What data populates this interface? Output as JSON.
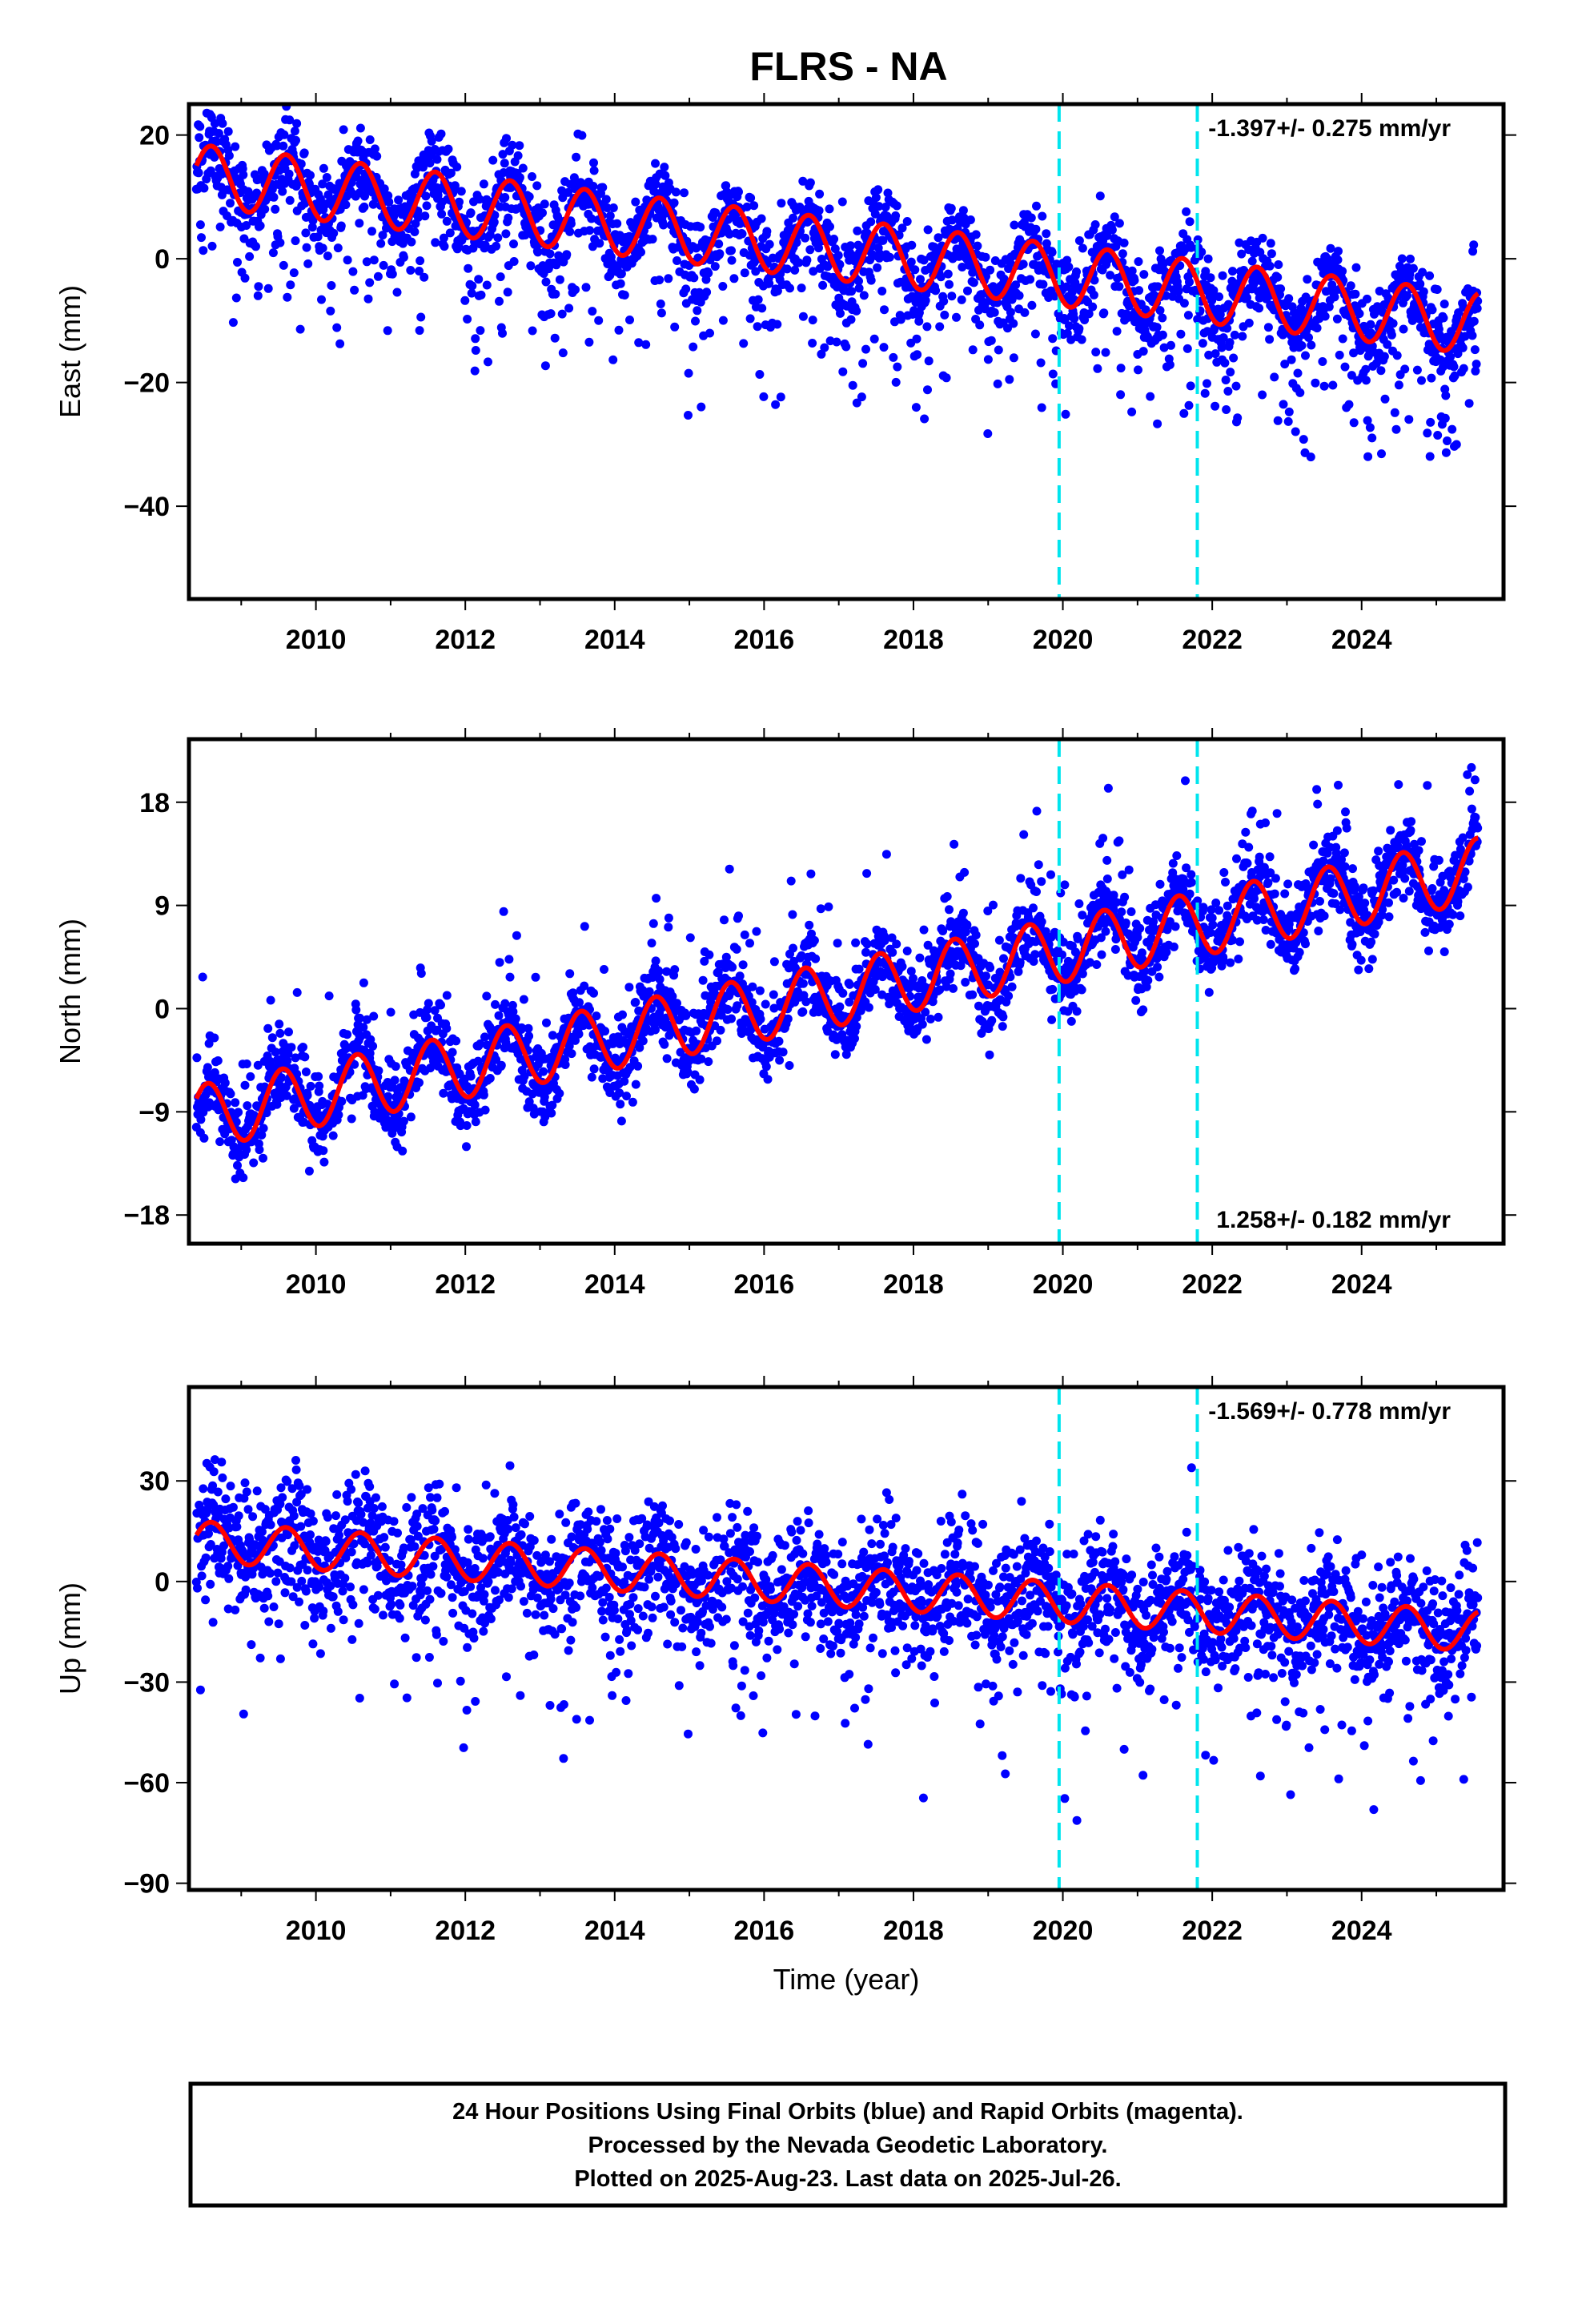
{
  "title": "FLRS - NA",
  "colors": {
    "final_orbits": "#0000ff",
    "model_fit": "#ff0000",
    "offset_lines": "#00e5ee",
    "frame": "#000000"
  },
  "chart_data": [
    {
      "type": "scatter",
      "component": "East",
      "ylabel": "East (mm)",
      "xlabel": "",
      "xlim": [
        2008.3,
        2025.9
      ],
      "ylim": [
        -55,
        25
      ],
      "yticks": [
        20,
        0,
        -20,
        -40
      ],
      "xticks": [
        2010,
        2012,
        2014,
        2016,
        2018,
        2020,
        2022,
        2024
      ],
      "x_tick_labels": [
        "2010",
        "2012",
        "2014",
        "2016",
        "2018",
        "2020",
        "2022",
        "2024"
      ],
      "rate_text": "-1.397+/- 0.275 mm/yr",
      "rate_position": "top-right",
      "offset_lines_x": [
        2019.95,
        2021.8
      ],
      "data_range": [
        2008.4,
        2025.56
      ],
      "fit_model": {
        "intercept_at_start": 13.5,
        "rate_mm_per_yr": -1.397,
        "annual_amplitude": 5.0,
        "annual_peak_phase": 0.6
      },
      "scatter": {
        "noise_sd": 3.5,
        "outlier_fraction": 0.12,
        "outlier_extent": -14
      },
      "series": [
        {
          "values_description": "daily positions",
          "color": "#0000ff"
        },
        {
          "values_description": "model fit",
          "color": "#ff0000"
        }
      ]
    },
    {
      "type": "scatter",
      "component": "North",
      "ylabel": "North (mm)",
      "xlabel": "",
      "xlim": [
        2008.3,
        2025.9
      ],
      "ylim": [
        -20.5,
        23.5
      ],
      "yticks": [
        18,
        9,
        0,
        -9,
        -18
      ],
      "xticks": [
        2010,
        2012,
        2014,
        2016,
        2018,
        2020,
        2022,
        2024
      ],
      "x_tick_labels": [
        "2010",
        "2012",
        "2014",
        "2016",
        "2018",
        "2020",
        "2022",
        "2024"
      ],
      "rate_text": "1.258+/- 0.182 mm/yr",
      "rate_position": "bottom-right",
      "offset_lines_x": [
        2019.95,
        2021.8
      ],
      "data_range": [
        2008.4,
        2025.56
      ],
      "fit_model": {
        "intercept_at_start": -9.5,
        "rate_mm_per_yr": 1.258,
        "annual_amplitude": 2.8,
        "annual_peak_phase": 0.55
      },
      "scatter": {
        "noise_sd": 1.8,
        "outlier_fraction": 0.04,
        "outlier_extent": 6
      },
      "series": [
        {
          "values_description": "daily positions",
          "color": "#0000ff"
        },
        {
          "values_description": "model fit",
          "color": "#ff0000"
        }
      ]
    },
    {
      "type": "scatter",
      "component": "Up",
      "ylabel": "Up (mm)",
      "xlabel": "Time (year)",
      "xlim": [
        2008.3,
        2025.9
      ],
      "ylim": [
        -92,
        58
      ],
      "yticks": [
        30,
        0,
        -30,
        -60,
        -90
      ],
      "xticks": [
        2010,
        2012,
        2014,
        2016,
        2018,
        2020,
        2022,
        2024
      ],
      "x_tick_labels": [
        "2010",
        "2012",
        "2014",
        "2016",
        "2018",
        "2020",
        "2022",
        "2024"
      ],
      "rate_text": "-1.569+/- 0.778 mm/yr",
      "rate_position": "top-right",
      "offset_lines_x": [
        2019.95,
        2021.8
      ],
      "data_range": [
        2008.4,
        2025.56
      ],
      "fit_model": {
        "intercept_at_start": 12,
        "rate_mm_per_yr": -1.569,
        "annual_amplitude": 6.0,
        "annual_peak_phase": 0.6
      },
      "scatter": {
        "noise_sd": 9.0,
        "outlier_fraction": 0.07,
        "outlier_extent": -28
      },
      "series": [
        {
          "values_description": "daily positions",
          "color": "#0000ff"
        },
        {
          "values_description": "model fit",
          "color": "#ff0000"
        }
      ]
    }
  ],
  "caption": {
    "line1": "24 Hour Positions Using Final Orbits (blue) and Rapid Orbits (magenta).",
    "line2": "Processed by the Nevada Geodetic Laboratory.",
    "line3": "Plotted on 2025-Aug-23. Last data on 2025-Jul-26."
  }
}
